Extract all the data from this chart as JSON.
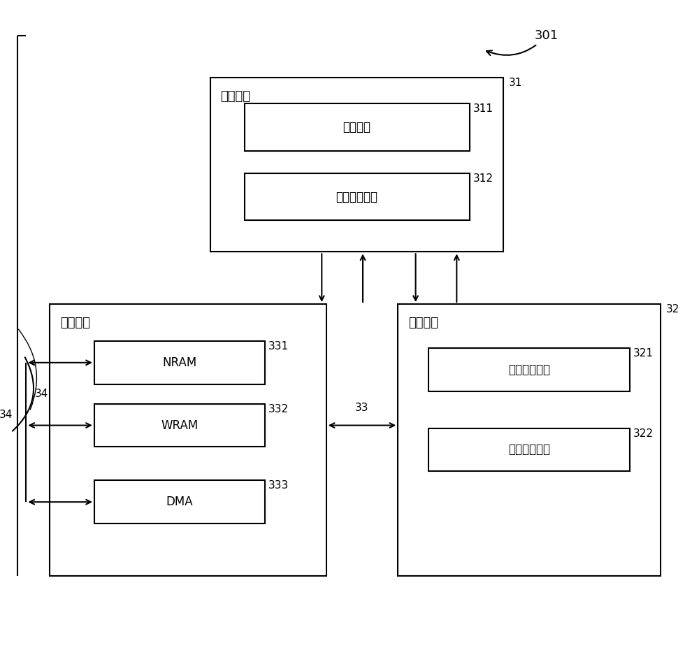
{
  "bg_color": "#ffffff",
  "line_color": "#000000",
  "font_size_module": 13,
  "font_size_ref": 11,
  "font_size_inner": 12,
  "title_301": "301",
  "label_31": "31",
  "label_34": "34",
  "label_33": "33",
  "label_32": "32",
  "label_311": "311",
  "label_312": "312",
  "label_321": "321",
  "label_322": "322",
  "label_331": "331",
  "label_332": "332",
  "label_333": "333",
  "text_ctrl": "控制模块",
  "text_store": "存储模块",
  "text_calc": "运算模块",
  "text_fetch": "取指单元",
  "text_decode": "指令译码单元",
  "text_nram": "NRAM",
  "text_wram": "WRAM",
  "text_dma": "DMA",
  "text_vec": "向量运算单元",
  "text_mat": "矩阵运算单元"
}
